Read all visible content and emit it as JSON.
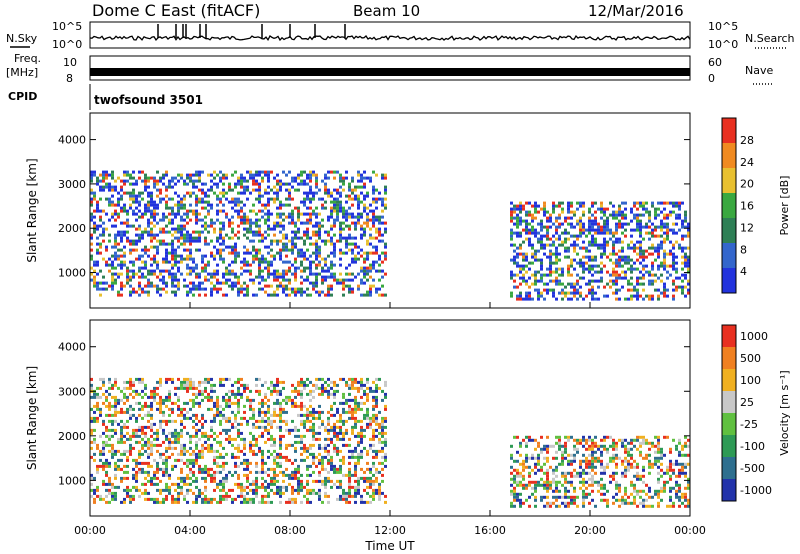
{
  "header": {
    "title": "Dome C East (fitACF)",
    "beam": "Beam 10",
    "date": "12/Mar/2016"
  },
  "sidepanels": {
    "nsky_label": "N.Sky",
    "nsearch_label": "N.Search",
    "freq_label_line1": "Freq.",
    "freq_label_line2": "[MHz]",
    "nave_label": "Nave",
    "cpid_label": "CPID",
    "cpid_value": "twofsound 3501",
    "noise_ticks_left": [
      "10^5",
      "10^0"
    ],
    "noise_ticks_right": [
      "10^5",
      "10^0"
    ],
    "freq_ticks_left": [
      "10",
      "8"
    ],
    "nave_ticks_right": [
      "60",
      "0"
    ]
  },
  "chart_data": [
    {
      "type": "heatmap",
      "panel": "power",
      "ylabel": "Slant Range [km]",
      "xlabel": "",
      "x_ticks": [
        "00:00",
        "04:00",
        "08:00",
        "12:00",
        "16:00",
        "20:00",
        "00:00"
      ],
      "y_ticks": [
        1000,
        2000,
        3000,
        4000
      ],
      "ylim": [
        200,
        4600
      ],
      "xlim_hours": [
        0,
        24
      ],
      "colorbar": {
        "label": "Power [dB]",
        "ticks": [
          "4",
          "8",
          "12",
          "16",
          "20",
          "24",
          "28"
        ],
        "colors": [
          "#2233dd",
          "#3366cc",
          "#2e7f55",
          "#3aa840",
          "#e8c030",
          "#f08a20",
          "#e83020"
        ]
      },
      "echo_regions": [
        {
          "t_start": 0.0,
          "t_end": 11.8,
          "r_min": 500,
          "r_max": 3300
        },
        {
          "t_start": 16.8,
          "t_end": 24.0,
          "r_min": 400,
          "r_max": 2600
        }
      ]
    },
    {
      "type": "heatmap",
      "panel": "velocity",
      "ylabel": "Slant Range [km]",
      "xlabel": "Time UT",
      "x_ticks": [
        "00:00",
        "04:00",
        "08:00",
        "12:00",
        "16:00",
        "20:00",
        "00:00"
      ],
      "y_ticks": [
        1000,
        2000,
        3000,
        4000
      ],
      "ylim": [
        200,
        4600
      ],
      "xlim_hours": [
        0,
        24
      ],
      "colorbar": {
        "label": "Velocity [m s⁻¹]",
        "ticks": [
          "1000",
          "500",
          "100",
          "25",
          "-25",
          "-100",
          "-500",
          "-1000"
        ],
        "colors": [
          "#2233aa",
          "#2e6f8f",
          "#2e9a55",
          "#60c040",
          "#c8c8c8",
          "#f0b020",
          "#f08020",
          "#e83020"
        ]
      },
      "echo_regions": [
        {
          "t_start": 0.0,
          "t_end": 11.8,
          "r_min": 500,
          "r_max": 3300
        },
        {
          "t_start": 16.8,
          "t_end": 24.0,
          "r_min": 400,
          "r_max": 2000
        }
      ]
    }
  ]
}
